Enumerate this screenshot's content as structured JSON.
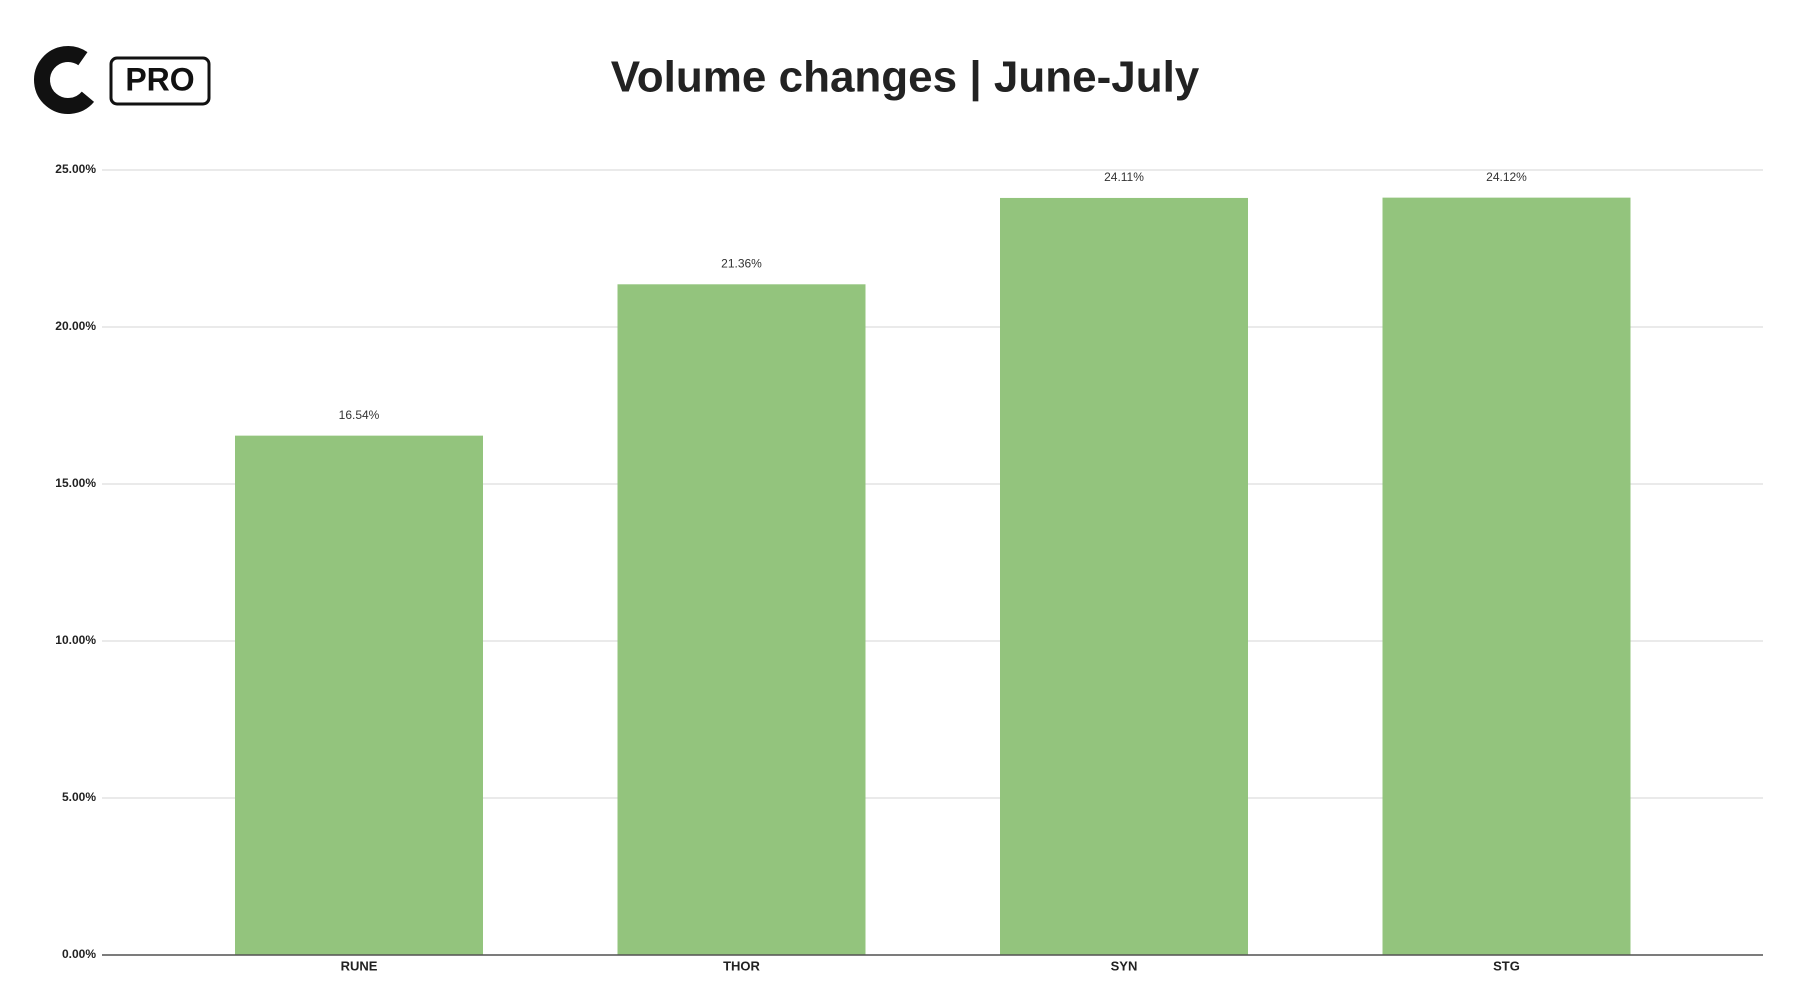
{
  "logo": "PRO",
  "chart_data": {
    "type": "bar",
    "title": "Volume changes | June-July",
    "categories": [
      "RUNE",
      "THOR",
      "SYN",
      "STG"
    ],
    "values": [
      16.54,
      21.36,
      24.11,
      24.12
    ],
    "value_labels": [
      "16.54%",
      "21.36%",
      "24.11%",
      "24.12%"
    ],
    "color": "#93c47d",
    "ylim": [
      0,
      25
    ],
    "yticks": [
      {
        "value": 0,
        "label": "0.00%"
      },
      {
        "value": 5,
        "label": "5.00%"
      },
      {
        "value": 10,
        "label": "10.00%"
      },
      {
        "value": 15,
        "label": "15.00%"
      },
      {
        "value": 20,
        "label": "20.00%"
      },
      {
        "value": 25,
        "label": "25.00%"
      }
    ],
    "grid": true
  }
}
